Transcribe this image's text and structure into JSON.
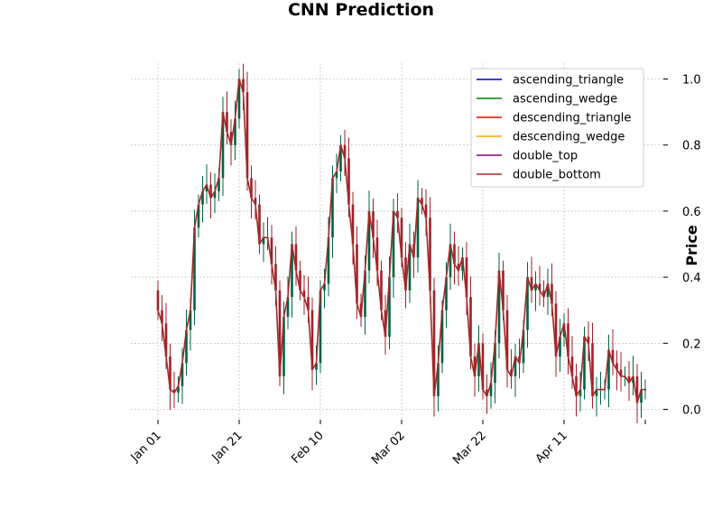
{
  "chart_data": {
    "type": "candlestick",
    "title": "CNN Prediction",
    "xlabel": "",
    "ylabel": "Price",
    "ylim": [
      -0.05,
      1.05
    ],
    "y_ticks": [
      "0.0",
      "0.2",
      "0.4",
      "0.6",
      "0.8",
      "1.0"
    ],
    "x_ticks": [
      "Jan 01",
      "Jan 21",
      "Feb 10",
      "Mar 02",
      "Mar 22",
      "Apr 11"
    ],
    "x_start": "Jan 01",
    "x_end": "Apr 26",
    "grid": true,
    "legend_position": "top-right",
    "up_color": "#006340",
    "down_color": "#a02128",
    "close": [
      0.3,
      0.26,
      0.16,
      0.06,
      0.05,
      0.07,
      0.14,
      0.24,
      0.3,
      0.55,
      0.62,
      0.66,
      0.68,
      0.64,
      0.66,
      0.7,
      0.9,
      0.84,
      0.8,
      0.88,
      1.0,
      0.96,
      0.7,
      0.64,
      0.62,
      0.5,
      0.52,
      0.52,
      0.44,
      0.36,
      0.1,
      0.28,
      0.34,
      0.5,
      0.42,
      0.36,
      0.34,
      0.3,
      0.12,
      0.14,
      0.36,
      0.38,
      0.52,
      0.7,
      0.72,
      0.8,
      0.76,
      0.62,
      0.5,
      0.32,
      0.28,
      0.42,
      0.6,
      0.52,
      0.42,
      0.3,
      0.22,
      0.4,
      0.6,
      0.58,
      0.46,
      0.36,
      0.5,
      0.46,
      0.64,
      0.62,
      0.58,
      0.36,
      0.04,
      0.14,
      0.3,
      0.4,
      0.5,
      0.44,
      0.42,
      0.46,
      0.34,
      0.16,
      0.1,
      0.2,
      0.06,
      0.04,
      0.08,
      0.2,
      0.42,
      0.3,
      0.12,
      0.1,
      0.16,
      0.14,
      0.24,
      0.4,
      0.36,
      0.38,
      0.36,
      0.34,
      0.38,
      0.32,
      0.16,
      0.22,
      0.26,
      0.16,
      0.1,
      0.04,
      0.06,
      0.22,
      0.2,
      0.04,
      0.06,
      0.06,
      0.06,
      0.18,
      0.14,
      0.12,
      0.1,
      0.1,
      0.08,
      0.1,
      0.02,
      0.06,
      0.06
    ],
    "series": [
      {
        "name": "ascending_triangle",
        "color": "#0000cc"
      },
      {
        "name": "ascending_wedge",
        "color": "#008000"
      },
      {
        "name": "descending_triangle",
        "color": "#ff0000"
      },
      {
        "name": "descending_wedge",
        "color": "#ffa500"
      },
      {
        "name": "double_top",
        "color": "#800080"
      },
      {
        "name": "double_bottom",
        "color": "#a52a2a"
      }
    ]
  }
}
